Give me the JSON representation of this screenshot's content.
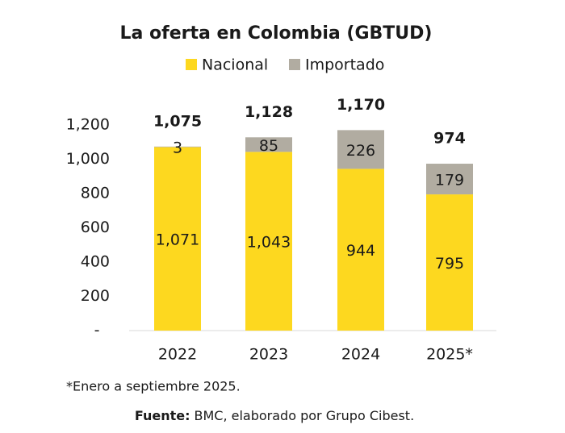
{
  "chart_data": {
    "type": "stacked_bar",
    "title": "La oferta en Colombia (GBTUD)",
    "categories": [
      "2022",
      "2023",
      "2024",
      "2025*"
    ],
    "series": [
      {
        "name": "Nacional",
        "color": "#fdd81f",
        "values": [
          1071,
          1043,
          944,
          795
        ],
        "value_labels": [
          "1,071",
          "1,043",
          "944",
          "795"
        ]
      },
      {
        "name": "Importado",
        "color": "#b1aca1",
        "values": [
          3,
          85,
          226,
          179
        ]
      }
    ],
    "totals": {
      "values": [
        1075,
        1128,
        1170,
        974
      ],
      "value_labels": [
        "1,075",
        "1,128",
        "1,170",
        "974"
      ]
    },
    "ylim": [
      0,
      1200
    ],
    "yticks": [
      {
        "value": 0,
        "label": "-"
      },
      200,
      400,
      600,
      800,
      {
        "value": 1000,
        "label": "1,000"
      },
      {
        "value": 1200,
        "label": "1,200"
      }
    ],
    "grid": false,
    "legend": "top",
    "footnote": "*Enero a septiembre 2025.",
    "source_label": "Fuente:",
    "source_text": "BMC, elaborado por Grupo Cibest."
  }
}
